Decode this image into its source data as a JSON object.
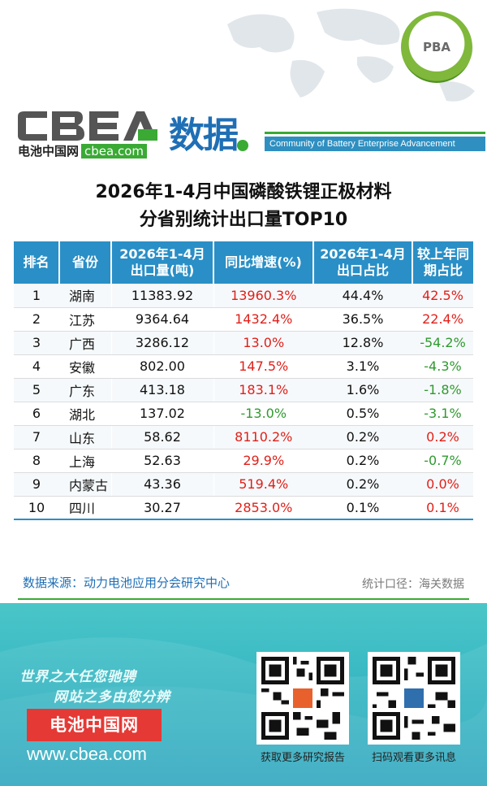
{
  "header": {
    "logo_text": "CBEA",
    "logo_sub": "电池中国网",
    "logo_url": "cbea.com",
    "section": "数据",
    "tagline": "Community of Battery Enterprise Advancement",
    "pba_badge": "PBA"
  },
  "title": {
    "line1": "2026年1-4月中国磷酸铁锂正极材料",
    "line2": "分省别统计出口量TOP10"
  },
  "table": {
    "headers": [
      "排名",
      "省份",
      "2026年1-4月出口量(吨)",
      "同比增速(%)",
      "2026年1-4月出口占比",
      "较上年同期占比"
    ],
    "rows": [
      {
        "rank": "1",
        "province": "湖南",
        "volume": "11383.92",
        "yoy": "13960.3%",
        "yoy_color": "red",
        "share": "44.4%",
        "change": "42.5%",
        "change_color": "red"
      },
      {
        "rank": "2",
        "province": "江苏",
        "volume": "9364.64",
        "yoy": "1432.4%",
        "yoy_color": "red",
        "share": "36.5%",
        "change": "22.4%",
        "change_color": "red"
      },
      {
        "rank": "3",
        "province": "广西",
        "volume": "3286.12",
        "yoy": "13.0%",
        "yoy_color": "red",
        "share": "12.8%",
        "change": "-54.2%",
        "change_color": "green"
      },
      {
        "rank": "4",
        "province": "安徽",
        "volume": "802.00",
        "yoy": "147.5%",
        "yoy_color": "red",
        "share": "3.1%",
        "change": "-4.3%",
        "change_color": "green"
      },
      {
        "rank": "5",
        "province": "广东",
        "volume": "413.18",
        "yoy": "183.1%",
        "yoy_color": "red",
        "share": "1.6%",
        "change": "-1.8%",
        "change_color": "green"
      },
      {
        "rank": "6",
        "province": "湖北",
        "volume": "137.02",
        "yoy": "-13.0%",
        "yoy_color": "green",
        "share": "0.5%",
        "change": "-3.1%",
        "change_color": "green"
      },
      {
        "rank": "7",
        "province": "山东",
        "volume": "58.62",
        "yoy": "8110.2%",
        "yoy_color": "red",
        "share": "0.2%",
        "change": "0.2%",
        "change_color": "red"
      },
      {
        "rank": "8",
        "province": "上海",
        "volume": "52.63",
        "yoy": "29.9%",
        "yoy_color": "red",
        "share": "0.2%",
        "change": "-0.7%",
        "change_color": "green"
      },
      {
        "rank": "9",
        "province": "内蒙古",
        "volume": "43.36",
        "yoy": "519.4%",
        "yoy_color": "red",
        "share": "0.2%",
        "change": "0.0%",
        "change_color": "red"
      },
      {
        "rank": "10",
        "province": "四川",
        "volume": "30.27",
        "yoy": "2853.0%",
        "yoy_color": "red",
        "share": "0.1%",
        "change": "0.1%",
        "change_color": "red"
      }
    ]
  },
  "source": {
    "left": "数据来源：动力电池应用分会研究中心",
    "right": "统计口径：海关数据"
  },
  "footer": {
    "slogan1": "世界之大任您驰骋",
    "slogan2": "网站之多由您分辨",
    "brand": "电池中国网",
    "site": "www.cbea.com",
    "qr1_caption": "获取更多研究报告",
    "qr2_caption": "扫码观看更多讯息"
  },
  "colors": {
    "header_blue": "#2a8fc6",
    "positive_red": "#e0201a",
    "negative_green": "#2f9a2f",
    "brand_green": "#3aaa35",
    "footer_teal": "#34b4c2"
  }
}
